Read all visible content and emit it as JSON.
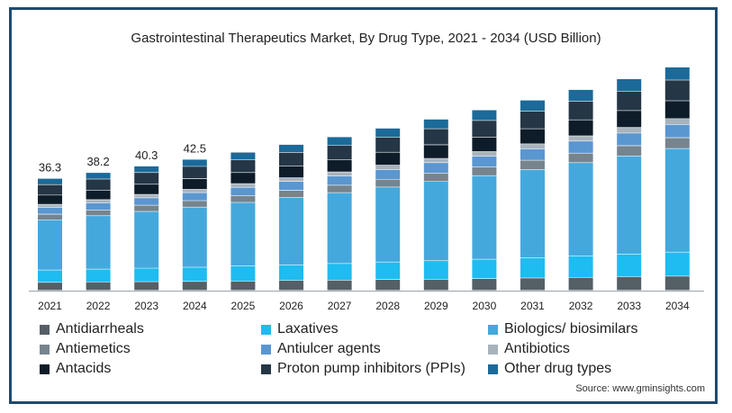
{
  "chart_data": {
    "type": "bar",
    "stacked": true,
    "title": "Gastrointestinal Therapeutics Market, By Drug Type, 2021 - 2034 (USD Billion)",
    "categories": [
      "2021",
      "2022",
      "2023",
      "2024",
      "2025",
      "2026",
      "2027",
      "2028",
      "2029",
      "2030",
      "2031",
      "2032",
      "2033",
      "2034"
    ],
    "totals": [
      36.3,
      38.2,
      40.3,
      42.5,
      44.8,
      47.3,
      49.8,
      52.6,
      55.5,
      58.5,
      61.7,
      65.1,
      68.6,
      72.4
    ],
    "total_labels": [
      "36.3",
      "38.2",
      "40.3",
      "42.5",
      null,
      null,
      null,
      null,
      null,
      null,
      null,
      null,
      null,
      null
    ],
    "series": [
      {
        "name": "Antidiarrheals",
        "color": "#555f66",
        "values": [
          2.6,
          2.7,
          2.8,
          2.9,
          3.0,
          3.2,
          3.3,
          3.5,
          3.6,
          3.8,
          4.0,
          4.2,
          4.4,
          4.6
        ]
      },
      {
        "name": "Laxatives",
        "color": "#1ebcf0",
        "values": [
          4.0,
          4.2,
          4.4,
          4.6,
          4.9,
          5.1,
          5.4,
          5.7,
          6.0,
          6.3,
          6.6,
          7.0,
          7.4,
          7.8
        ]
      },
      {
        "name": "Biologics/ biosimilars",
        "color": "#45a8dc",
        "values": [
          16.3,
          17.3,
          18.4,
          19.5,
          20.6,
          21.8,
          23.0,
          24.3,
          25.7,
          27.1,
          28.6,
          30.2,
          31.8,
          33.6
        ]
      },
      {
        "name": "Antiemetics",
        "color": "#76848e",
        "values": [
          1.8,
          1.9,
          2.0,
          2.1,
          2.2,
          2.3,
          2.4,
          2.5,
          2.7,
          2.8,
          3.0,
          3.1,
          3.3,
          3.5
        ]
      },
      {
        "name": "Antiulcer agents",
        "color": "#5a96d0",
        "values": [
          2.2,
          2.3,
          2.4,
          2.6,
          2.7,
          2.9,
          3.0,
          3.2,
          3.4,
          3.5,
          3.7,
          3.9,
          4.1,
          4.3
        ]
      },
      {
        "name": "Antibiotics",
        "color": "#a8b3bc",
        "values": [
          1.0,
          1.0,
          1.1,
          1.1,
          1.2,
          1.2,
          1.3,
          1.4,
          1.4,
          1.5,
          1.6,
          1.7,
          1.8,
          1.9
        ]
      },
      {
        "name": "Antacids",
        "color": "#0e1c2a",
        "values": [
          3.0,
          3.1,
          3.3,
          3.4,
          3.6,
          3.8,
          4.0,
          4.2,
          4.4,
          4.6,
          4.9,
          5.2,
          5.5,
          5.8
        ]
      },
      {
        "name": "Proton pump inhibitors (PPIs)",
        "color": "#253646",
        "values": [
          3.4,
          3.6,
          3.8,
          4.0,
          4.2,
          4.4,
          4.6,
          4.9,
          5.2,
          5.5,
          5.7,
          6.0,
          6.3,
          6.7
        ]
      },
      {
        "name": "Other drug types",
        "color": "#1b6a9a",
        "values": [
          2.0,
          2.1,
          2.1,
          2.3,
          2.4,
          2.6,
          2.8,
          2.9,
          3.1,
          3.4,
          3.6,
          3.8,
          4.0,
          4.2
        ]
      }
    ],
    "ylim": [
      0,
      75
    ],
    "grid": false,
    "legend_position": "bottom"
  },
  "source": "Source: www.gminsights.com"
}
